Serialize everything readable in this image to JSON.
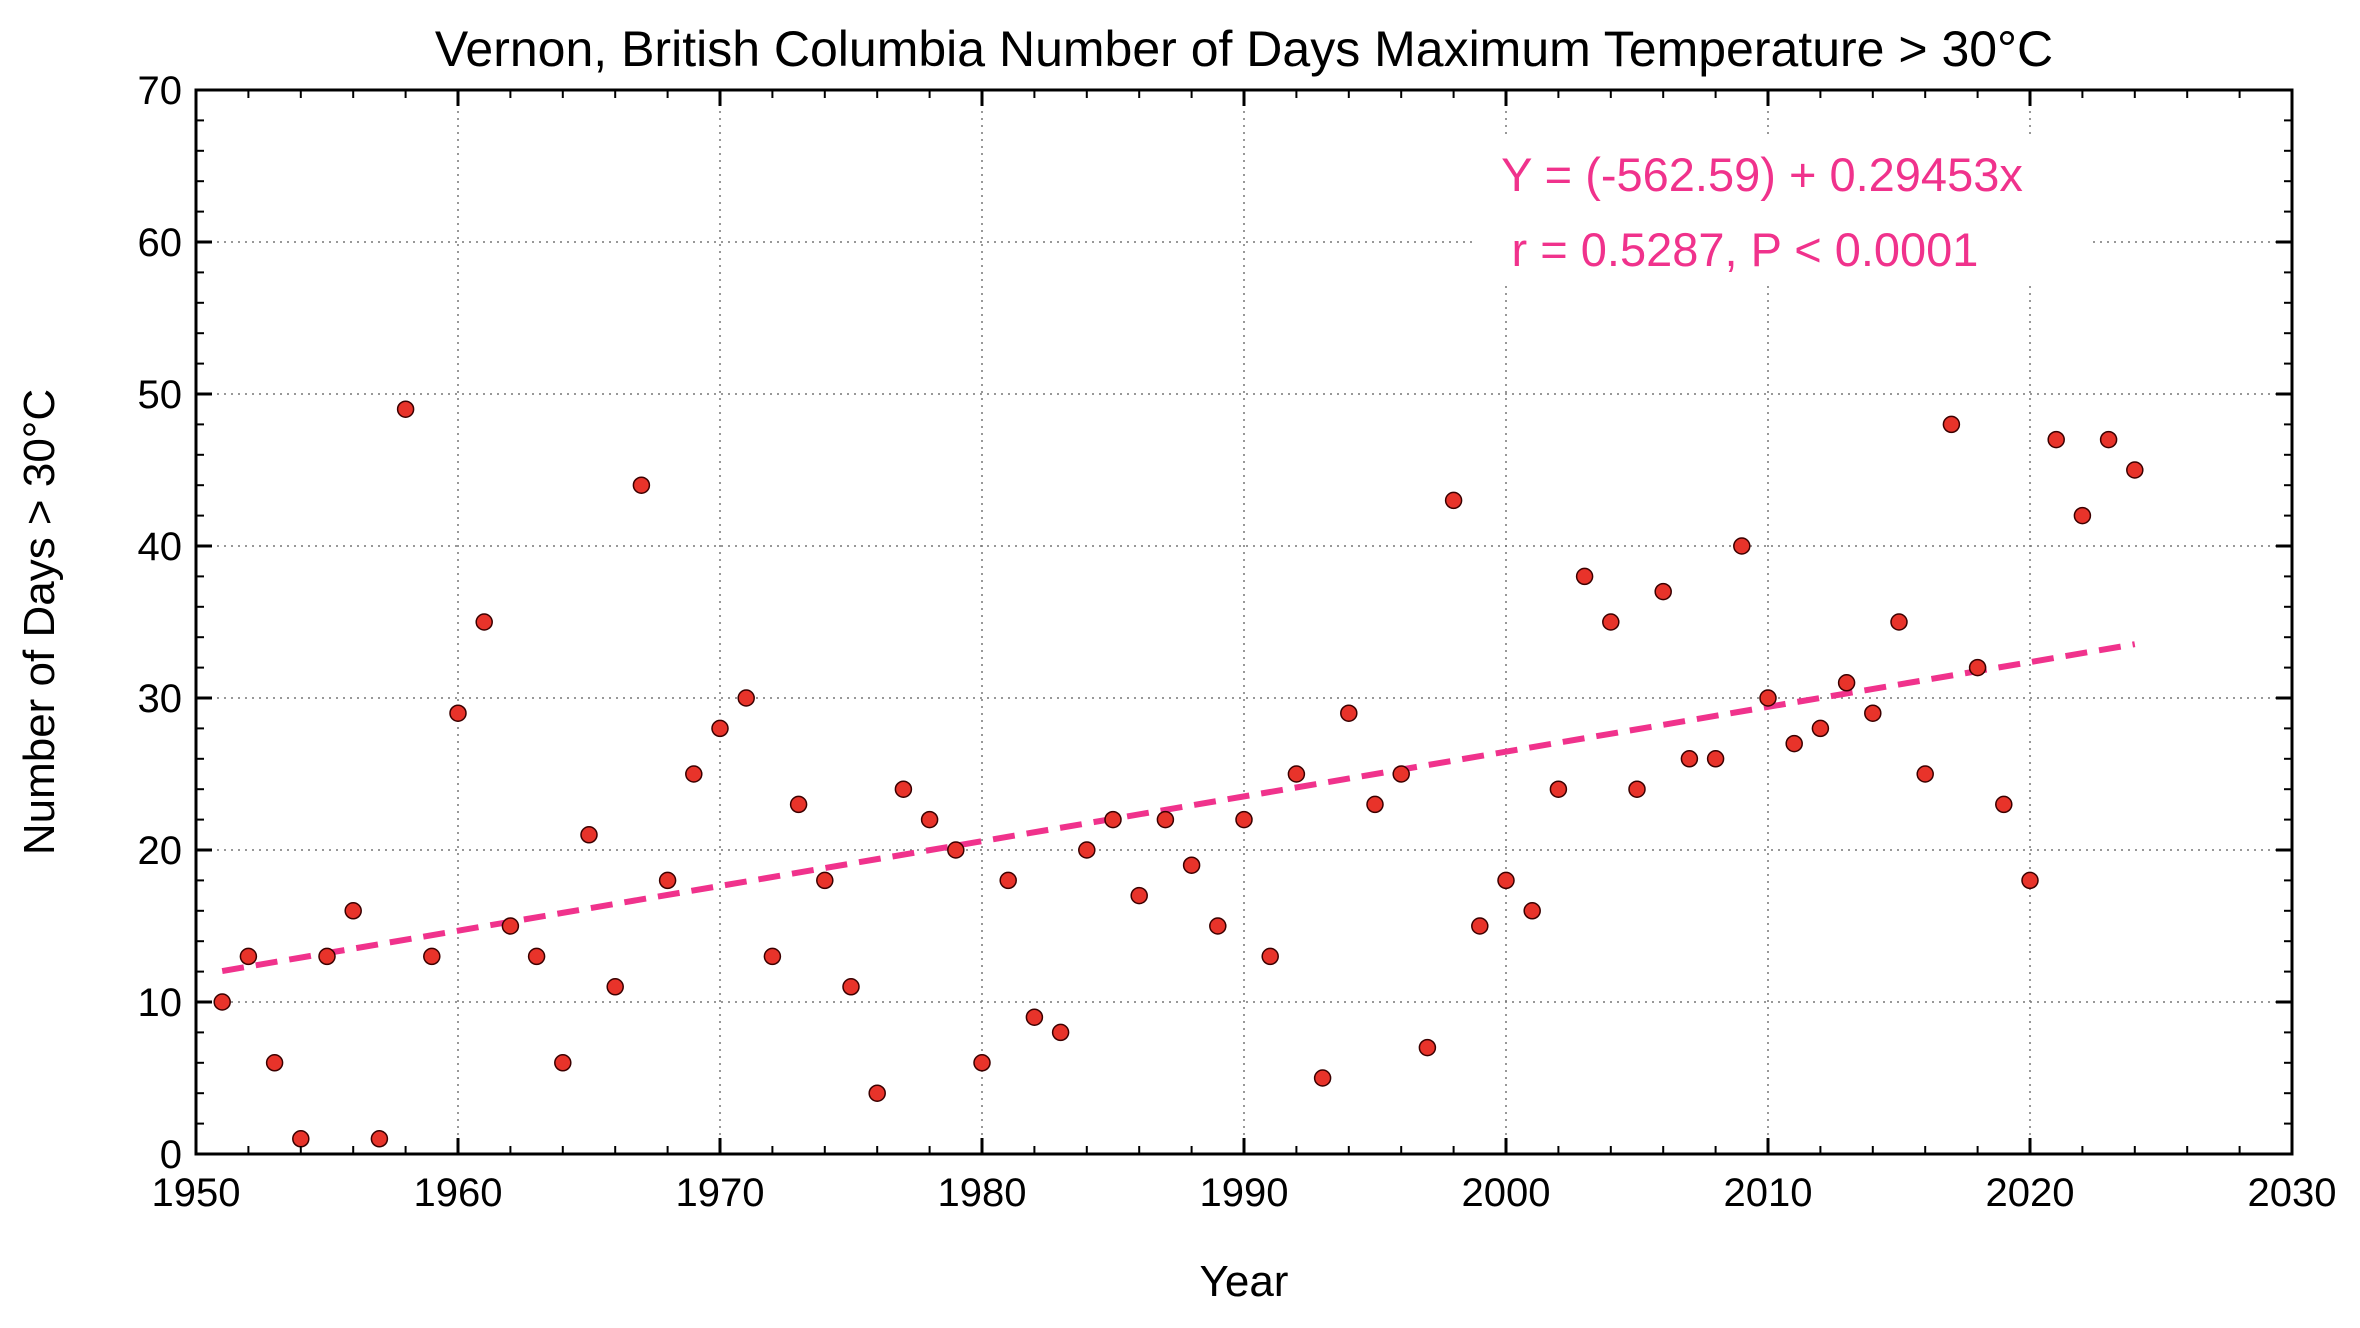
{
  "chart_data": {
    "type": "scatter",
    "title": "Vernon, British Columbia Number of Days Maximum Temperature  > 30°C",
    "xlabel": "Year",
    "ylabel": "Number of Days > 30°C",
    "xlim": [
      1950,
      2030
    ],
    "ylim": [
      0,
      70
    ],
    "xticks": [
      1950,
      1960,
      1970,
      1980,
      1990,
      2000,
      2010,
      2020,
      2030
    ],
    "yticks": [
      0,
      10,
      20,
      30,
      40,
      50,
      60,
      70
    ],
    "grid": true,
    "point_color": "#e8332a",
    "trend_color": "#f0328c",
    "x": [
      1951,
      1952,
      1953,
      1954,
      1955,
      1956,
      1957,
      1958,
      1959,
      1960,
      1961,
      1962,
      1963,
      1964,
      1965,
      1966,
      1967,
      1968,
      1969,
      1970,
      1971,
      1972,
      1973,
      1974,
      1975,
      1976,
      1977,
      1978,
      1979,
      1980,
      1981,
      1982,
      1983,
      1984,
      1985,
      1986,
      1987,
      1988,
      1989,
      1990,
      1991,
      1992,
      1993,
      1994,
      1995,
      1996,
      1997,
      1998,
      1999,
      2000,
      2001,
      2002,
      2003,
      2004,
      2005,
      2006,
      2007,
      2008,
      2009,
      2010,
      2011,
      2012,
      2013,
      2014,
      2015,
      2016,
      2017,
      2018,
      2019,
      2020,
      2021,
      2022,
      2023,
      2024
    ],
    "y": [
      10,
      13,
      6,
      1,
      13,
      16,
      1,
      49,
      13,
      29,
      35,
      15,
      13,
      6,
      21,
      11,
      44,
      18,
      25,
      28,
      30,
      13,
      23,
      18,
      11,
      4,
      24,
      22,
      20,
      6,
      18,
      9,
      8,
      20,
      22,
      17,
      22,
      19,
      15,
      22,
      13,
      25,
      5,
      29,
      23,
      25,
      7,
      43,
      15,
      18,
      16,
      24,
      38,
      35,
      24,
      37,
      26,
      26,
      40,
      30,
      27,
      28,
      31,
      29,
      35,
      25,
      48,
      32,
      23,
      18,
      47,
      42,
      47,
      45
    ],
    "trend": {
      "intercept": -562.59,
      "slope": 0.29453,
      "x_range": [
        1951,
        2024
      ]
    },
    "annotations": [
      "Y = (-562.59) + 0.29453x",
      "r = 0.5287, P < 0.0001"
    ]
  }
}
